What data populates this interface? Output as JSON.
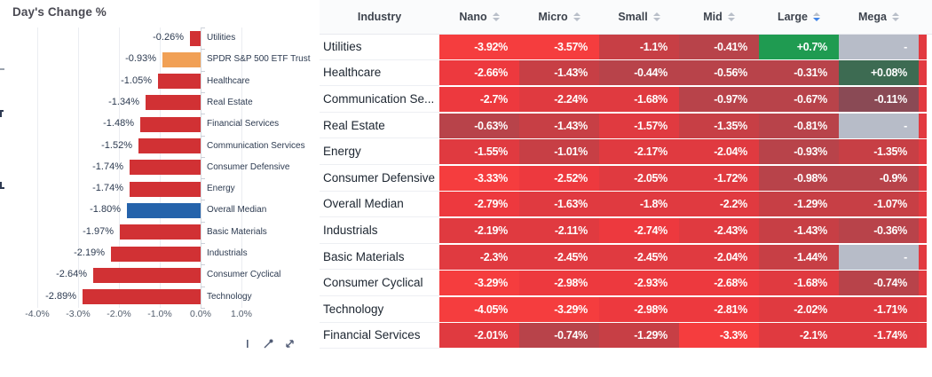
{
  "chart_data": {
    "type": "bar",
    "orientation": "horizontal",
    "title": "Day's Change %",
    "xlabel": "",
    "ylabel": "",
    "xlim": [
      -4.5,
      1.5
    ],
    "grid": true,
    "xticks": [
      {
        "value": -4,
        "label": "-4.0%"
      },
      {
        "value": -3,
        "label": "-3.0%"
      },
      {
        "value": -2,
        "label": "-2.0%"
      },
      {
        "value": -1,
        "label": "-1.0%"
      },
      {
        "value": 0,
        "label": "0.0%"
      },
      {
        "value": 1,
        "label": "1.0%"
      }
    ],
    "categories": [
      "Utilities",
      "SPDR S&P 500 ETF Trust",
      "Healthcare",
      "Real Estate",
      "Financial Services",
      "Communication Services",
      "Consumer Defensive",
      "Energy",
      "Overall Median",
      "Basic Materials",
      "Industrials",
      "Consumer Cyclical",
      "Technology"
    ],
    "values": [
      -0.26,
      -0.93,
      -1.05,
      -1.34,
      -1.48,
      -1.52,
      -1.74,
      -1.74,
      -1.8,
      -1.97,
      -2.19,
      -2.64,
      -2.89
    ],
    "value_labels": [
      "-0.26%",
      "-0.93%",
      "-1.05%",
      "-1.34%",
      "-1.48%",
      "-1.52%",
      "-1.74%",
      "-1.74%",
      "-1.80%",
      "-1.97%",
      "-2.19%",
      "-2.64%",
      "-2.89%"
    ],
    "bar_colors": [
      "#d13134",
      "#f1a055",
      "#d13134",
      "#d13134",
      "#d13134",
      "#d13134",
      "#d13134",
      "#d13134",
      "#2563ab",
      "#d13134",
      "#d13134",
      "#d13134",
      "#d13134"
    ],
    "colors": {
      "bar_red": "#d13134",
      "etf_orange": "#f1a055",
      "median_blue": "#2563ab"
    }
  },
  "table": {
    "columns": [
      {
        "id": "industry",
        "label": "Industry",
        "sortable": false,
        "sort": "none"
      },
      {
        "id": "nano",
        "label": "Nano",
        "sortable": true,
        "sort": "none"
      },
      {
        "id": "micro",
        "label": "Micro",
        "sortable": true,
        "sort": "none"
      },
      {
        "id": "small",
        "label": "Small",
        "sortable": true,
        "sort": "none"
      },
      {
        "id": "mid",
        "label": "Mid",
        "sortable": true,
        "sort": "none"
      },
      {
        "id": "large",
        "label": "Large",
        "sortable": true,
        "sort": "desc"
      },
      {
        "id": "mega",
        "label": "Mega",
        "sortable": true,
        "sort": "none"
      }
    ],
    "null_display": "-",
    "rows": [
      {
        "industry": "Utilities",
        "values": [
          -3.92,
          -3.57,
          -1.1,
          -0.41,
          0.7,
          null
        ],
        "displays": [
          "-3.92%",
          "-3.57%",
          "-1.1%",
          "-0.41%",
          "+0.7%",
          null
        ]
      },
      {
        "industry": "Healthcare",
        "values": [
          -2.66,
          -1.43,
          -0.44,
          -0.56,
          -0.31,
          0.08
        ],
        "displays": [
          "-2.66%",
          "-1.43%",
          "-0.44%",
          "-0.56%",
          "-0.31%",
          "+0.08%"
        ]
      },
      {
        "industry": "Communication Se...",
        "values": [
          -2.7,
          -2.24,
          -1.68,
          -0.97,
          -0.67,
          -0.11
        ],
        "displays": [
          "-2.7%",
          "-2.24%",
          "-1.68%",
          "-0.97%",
          "-0.67%",
          "-0.11%"
        ]
      },
      {
        "industry": "Real Estate",
        "values": [
          -0.63,
          -1.43,
          -1.57,
          -1.35,
          -0.81,
          null
        ],
        "displays": [
          "-0.63%",
          "-1.43%",
          "-1.57%",
          "-1.35%",
          "-0.81%",
          null
        ]
      },
      {
        "industry": "Energy",
        "values": [
          -1.55,
          -1.01,
          -2.17,
          -2.04,
          -0.93,
          -1.35
        ],
        "displays": [
          "-1.55%",
          "-1.01%",
          "-2.17%",
          "-2.04%",
          "-0.93%",
          "-1.35%"
        ]
      },
      {
        "industry": "Consumer Defensive",
        "values": [
          -3.33,
          -2.52,
          -2.05,
          -1.72,
          -0.98,
          -0.9
        ],
        "displays": [
          "-3.33%",
          "-2.52%",
          "-2.05%",
          "-1.72%",
          "-0.98%",
          "-0.9%"
        ]
      },
      {
        "industry": "Overall Median",
        "values": [
          -2.79,
          -1.63,
          -1.8,
          -2.2,
          -1.29,
          -1.07
        ],
        "displays": [
          "-2.79%",
          "-1.63%",
          "-1.8%",
          "-2.2%",
          "-1.29%",
          "-1.07%"
        ]
      },
      {
        "industry": "Industrials",
        "values": [
          -2.19,
          -2.11,
          -2.74,
          -2.43,
          -1.43,
          -0.36
        ],
        "displays": [
          "-2.19%",
          "-2.11%",
          "-2.74%",
          "-2.43%",
          "-1.43%",
          "-0.36%"
        ]
      },
      {
        "industry": "Basic Materials",
        "values": [
          -2.3,
          -2.45,
          -2.45,
          -2.04,
          -1.44,
          null
        ],
        "displays": [
          "-2.3%",
          "-2.45%",
          "-2.45%",
          "-2.04%",
          "-1.44%",
          null
        ]
      },
      {
        "industry": "Consumer Cyclical",
        "values": [
          -3.29,
          -2.98,
          -2.93,
          -2.68,
          -1.68,
          -0.74
        ],
        "displays": [
          "-3.29%",
          "-2.98%",
          "-2.93%",
          "-2.68%",
          "-1.68%",
          "-0.74%"
        ]
      },
      {
        "industry": "Technology",
        "values": [
          -4.05,
          -3.29,
          -2.98,
          -2.81,
          -2.02,
          -1.71
        ],
        "displays": [
          "-4.05%",
          "-3.29%",
          "-2.98%",
          "-2.81%",
          "-2.02%",
          "-1.71%"
        ]
      },
      {
        "industry": "Financial Services",
        "values": [
          -2.01,
          -0.74,
          -1.29,
          -3.3,
          -2.1,
          -1.74
        ],
        "displays": [
          "-2.01%",
          "-0.74%",
          "-1.29%",
          "-3.3%",
          "-2.1%",
          "-1.74%"
        ]
      }
    ],
    "heat_scale": [
      {
        "max": -3.2,
        "color": "#f53d3e"
      },
      {
        "max": -2.5,
        "color": "#ed393e"
      },
      {
        "max": -1.5,
        "color": "#e03a40"
      },
      {
        "max": -1.0,
        "color": "#c73f45"
      },
      {
        "max": -0.25,
        "color": "#b8434a"
      },
      {
        "max": 0,
        "color": "#8a4a55"
      },
      {
        "max": 0.3,
        "color": "#3d6b52"
      },
      {
        "max": 99,
        "color": "#1f9b51"
      }
    ],
    "colors": {
      "empty_cell": "#b7bcc8",
      "right_strip": "#e23a40",
      "sort_active": "#4285e8",
      "sort_idle": "#b9bfc9"
    }
  },
  "toolbar": {
    "icons": [
      "handle-icon",
      "zoom-tool-icon",
      "expand-icon"
    ]
  }
}
